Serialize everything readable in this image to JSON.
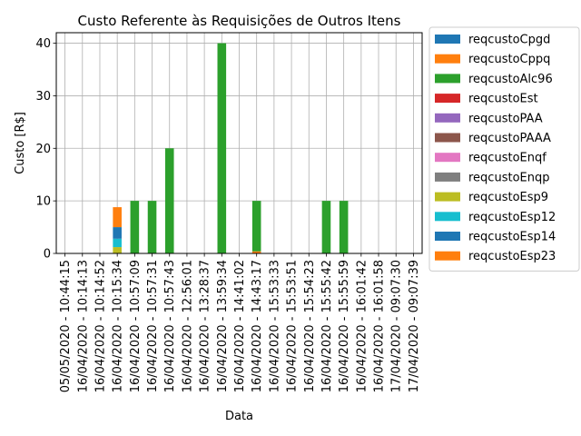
{
  "chart_data": {
    "type": "bar",
    "stacked": true,
    "title": "Custo Referente às Requisições de Outros Itens",
    "xlabel": "Data",
    "ylabel": "Custo [R$]",
    "ylim": [
      0,
      42
    ],
    "yticks": [
      0,
      10,
      20,
      30,
      40
    ],
    "grid": true,
    "legend_position": "outside-right",
    "categories": [
      "05/05/2020 - 10:44:15",
      "16/04/2020 - 10:14:13",
      "16/04/2020 - 10:14:52",
      "16/04/2020 - 10:15:34",
      "16/04/2020 - 10:57:09",
      "16/04/2020 - 10:57:31",
      "16/04/2020 - 10:57:43",
      "16/04/2020 - 12:56:01",
      "16/04/2020 - 13:28:37",
      "16/04/2020 - 13:59:34",
      "16/04/2020 - 14:41:02",
      "16/04/2020 - 14:43:17",
      "16/04/2020 - 15:53:33",
      "16/04/2020 - 15:53:51",
      "16/04/2020 - 15:54:23",
      "16/04/2020 - 15:55:42",
      "16/04/2020 - 15:55:59",
      "16/04/2020 - 16:01:42",
      "16/04/2020 - 16:01:58",
      "17/04/2020 - 09:07:30",
      "17/04/2020 - 09:07:39"
    ],
    "series": [
      {
        "name": "reqcustoCpgd",
        "color": "#1f77b4",
        "values": [
          0,
          0,
          0,
          0,
          0,
          0,
          0,
          0,
          0,
          0,
          0,
          0,
          0,
          0,
          0,
          0,
          0,
          0,
          0,
          0,
          0
        ]
      },
      {
        "name": "reqcustoCppq",
        "color": "#ff7f0e",
        "values": [
          0,
          0,
          0,
          0,
          0,
          0,
          0,
          0,
          0,
          0,
          0,
          0.4,
          0,
          0,
          0,
          0,
          0,
          0,
          0,
          0,
          0
        ]
      },
      {
        "name": "reqcustoAlc96",
        "color": "#2ca02c",
        "values": [
          0,
          0,
          0,
          0,
          10,
          10,
          20,
          0,
          0,
          40,
          0,
          9.6,
          0,
          0,
          0,
          10,
          10,
          0,
          0,
          0,
          0
        ]
      },
      {
        "name": "reqcustoEst",
        "color": "#d62728",
        "values": [
          0,
          0,
          0,
          0,
          0,
          0,
          0,
          0,
          0,
          0,
          0,
          0,
          0,
          0,
          0,
          0,
          0,
          0,
          0,
          0,
          0
        ]
      },
      {
        "name": "reqcustoPAA",
        "color": "#9467bd",
        "values": [
          0,
          0,
          0,
          0,
          0,
          0,
          0,
          0,
          0,
          0,
          0,
          0,
          0,
          0,
          0,
          0,
          0,
          0,
          0,
          0,
          0
        ]
      },
      {
        "name": "reqcustoPAAA",
        "color": "#8c564b",
        "values": [
          0,
          0,
          0,
          0,
          0,
          0,
          0,
          0,
          0,
          0,
          0,
          0,
          0,
          0,
          0,
          0,
          0,
          0,
          0,
          0,
          0
        ]
      },
      {
        "name": "reqcustoEnqf",
        "color": "#e377c2",
        "values": [
          0,
          0,
          0,
          0,
          0,
          0,
          0,
          0,
          0,
          0,
          0,
          0,
          0,
          0,
          0,
          0,
          0,
          0,
          0,
          0,
          0
        ]
      },
      {
        "name": "reqcustoEnqp",
        "color": "#7f7f7f",
        "values": [
          0,
          0,
          0,
          0,
          0,
          0,
          0,
          0,
          0,
          0,
          0,
          0,
          0,
          0,
          0,
          0,
          0,
          0,
          0,
          0,
          0
        ]
      },
      {
        "name": "reqcustoEsp9",
        "color": "#bcbd22",
        "values": [
          0,
          0,
          0,
          1.2,
          0,
          0,
          0,
          0,
          0,
          0,
          0,
          0,
          0,
          0,
          0,
          0,
          0,
          0,
          0,
          0,
          0
        ]
      },
      {
        "name": "reqcustoEsp12",
        "color": "#17becf",
        "values": [
          0,
          0,
          0,
          1.6,
          0,
          0,
          0,
          0,
          0,
          0,
          0,
          0,
          0,
          0,
          0,
          0,
          0,
          0,
          0,
          0,
          0
        ]
      },
      {
        "name": "reqcustoEsp14",
        "color": "#1f77b4",
        "values": [
          0,
          0,
          0,
          2.2,
          0,
          0,
          0,
          0,
          0,
          0,
          0,
          0,
          0,
          0,
          0,
          0,
          0,
          0,
          0,
          0,
          0
        ]
      },
      {
        "name": "reqcustoEsp23",
        "color": "#ff7f0e",
        "values": [
          0,
          0,
          0,
          3.8,
          0,
          0,
          0,
          0,
          0,
          0,
          0,
          0,
          0,
          0,
          0,
          0,
          0,
          0,
          0,
          0,
          0
        ]
      }
    ]
  }
}
